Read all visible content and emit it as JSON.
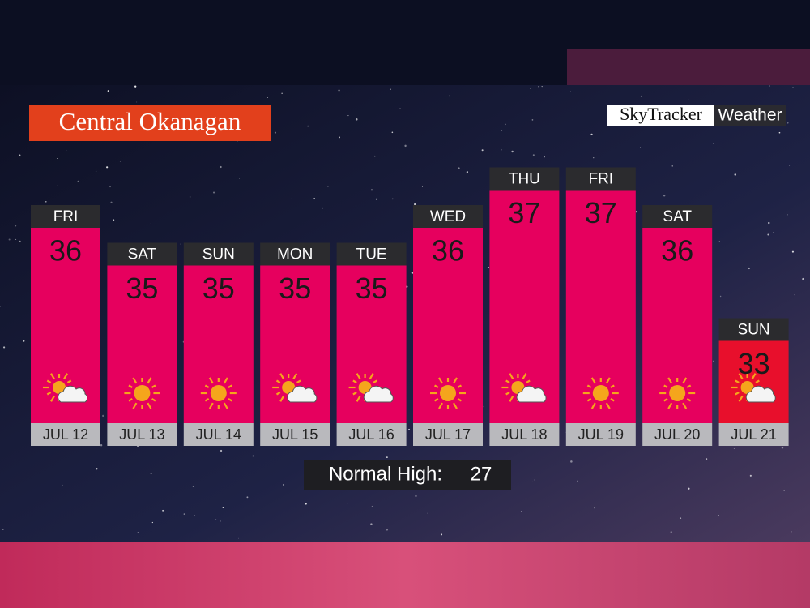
{
  "title": "Central Okanagan",
  "brand": {
    "name": "SkyTracker",
    "suffix": "Weather"
  },
  "chart_data": {
    "type": "bar",
    "categories": [
      "FRI",
      "SAT",
      "SUN",
      "MON",
      "TUE",
      "WED",
      "THU",
      "FRI",
      "SAT",
      "SUN"
    ],
    "dates": [
      "JUL 12",
      "JUL 13",
      "JUL 14",
      "JUL 15",
      "JUL 16",
      "JUL 17",
      "JUL 18",
      "JUL 19",
      "JUL 20",
      "JUL 21"
    ],
    "values": [
      36,
      35,
      35,
      35,
      35,
      36,
      37,
      37,
      36,
      33
    ],
    "colors": [
      "#e6005e",
      "#e6005e",
      "#e6005e",
      "#e6005e",
      "#e6005e",
      "#e6005e",
      "#e6005e",
      "#e6005e",
      "#e6005e",
      "#e80f2c"
    ],
    "normal_high": {
      "label": "Normal High:",
      "value": 27
    }
  }
}
